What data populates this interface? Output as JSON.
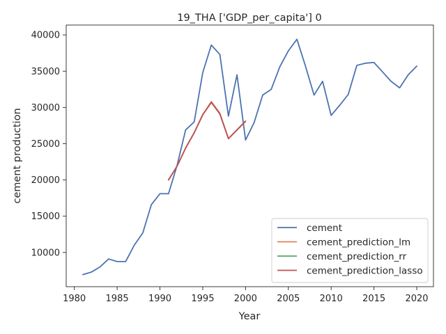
{
  "chart_data": {
    "type": "line",
    "title": "19_THA ['GDP_per_capita'] 0",
    "xlabel": "Year",
    "ylabel": "cement production",
    "xlim": [
      1979.05,
      2021.95
    ],
    "ylim": [
      5280,
      41360
    ],
    "xticks": [
      1980,
      1985,
      1990,
      1995,
      2000,
      2005,
      2010,
      2015,
      2020
    ],
    "yticks": [
      10000,
      15000,
      20000,
      25000,
      30000,
      35000,
      40000
    ],
    "grid": false,
    "legend_position": "lower right",
    "series": [
      {
        "name": "cement",
        "color": "#4c72b0",
        "x": [
          1981,
          1982,
          1983,
          1984,
          1985,
          1986,
          1987,
          1988,
          1989,
          1990,
          1991,
          1992,
          1993,
          1994,
          1995,
          1996,
          1997,
          1998,
          1999,
          2000,
          2001,
          2002,
          2003,
          2004,
          2005,
          2006,
          2007,
          2008,
          2009,
          2010,
          2011,
          2012,
          2013,
          2014,
          2015,
          2016,
          2017,
          2018,
          2019,
          2020
        ],
        "y": [
          6950,
          7300,
          8000,
          9100,
          8750,
          8750,
          11000,
          12700,
          16600,
          18100,
          18100,
          22000,
          26900,
          28000,
          34800,
          38600,
          37300,
          28800,
          34500,
          25500,
          27900,
          31700,
          32500,
          35600,
          37800,
          39400,
          35700,
          31700,
          33600,
          28900,
          30300,
          31800,
          35800,
          36100,
          36200,
          34900,
          33600,
          32700,
          34500,
          35700
        ]
      },
      {
        "name": "cement_prediction_lm",
        "color": "#dd8452",
        "x": [
          1991,
          1992,
          1993,
          1994,
          1995,
          1996,
          1997,
          1998,
          1999,
          2000
        ],
        "y": [
          20000,
          21900,
          24400,
          26500,
          29000,
          30800,
          29200,
          25700,
          26900,
          28100
        ]
      },
      {
        "name": "cement_prediction_rr",
        "color": "#55a868",
        "x": [
          1991,
          1992,
          1993,
          1994,
          1995,
          1996,
          1997,
          1998,
          1999,
          2000
        ],
        "y": [
          20000,
          21900,
          24400,
          26500,
          29000,
          30700,
          29100,
          25700,
          26900,
          28100
        ]
      },
      {
        "name": "cement_prediction_lasso",
        "color": "#c44e52",
        "x": [
          1991,
          1992,
          1993,
          1994,
          1995,
          1996,
          1997,
          1998,
          1999,
          2000
        ],
        "y": [
          20000,
          21900,
          24400,
          26500,
          29000,
          30700,
          29100,
          25700,
          26900,
          28100
        ]
      }
    ]
  }
}
